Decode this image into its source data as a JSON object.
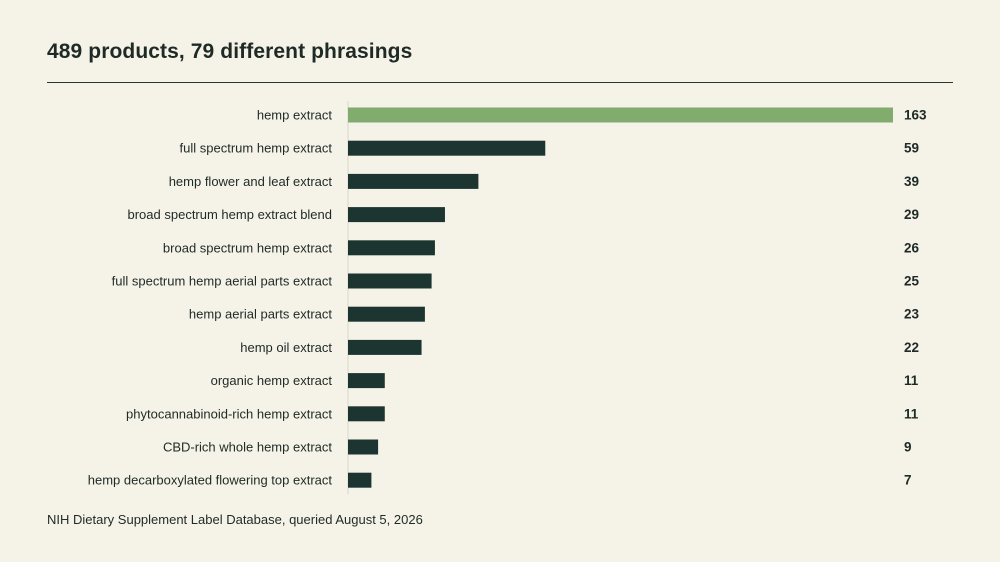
{
  "title": "489 products, 79 different phrasings",
  "source": "NIH Dietary Supplement Label Database, queried August 5, 2026",
  "colors": {
    "background": "#f5f2e8",
    "highlight_bar": "#82ab6e",
    "bar": "#1d3531",
    "text": "#1e2a25"
  },
  "chart_data": {
    "type": "bar",
    "orientation": "horizontal",
    "categories": [
      "hemp extract",
      "full spectrum hemp extract",
      "hemp flower and leaf extract",
      "broad spectrum hemp extract blend",
      "broad spectrum hemp extract",
      "full spectrum hemp aerial parts extract",
      "hemp aerial parts extract",
      "hemp oil extract",
      "organic hemp extract",
      "phytocannabinoid-rich hemp extract",
      "CBD-rich whole hemp extract",
      "hemp decarboxylated flowering top extract"
    ],
    "values": [
      163,
      59,
      39,
      29,
      26,
      25,
      23,
      22,
      11,
      11,
      9,
      7
    ],
    "value_labels": [
      "163",
      "59",
      "39",
      "29",
      "26",
      "25",
      "23",
      "22",
      "11",
      "11",
      "9",
      "7"
    ],
    "highlighted_category": "hemp extract",
    "xlim": [
      0,
      163
    ],
    "grid": false,
    "legend": "none"
  }
}
